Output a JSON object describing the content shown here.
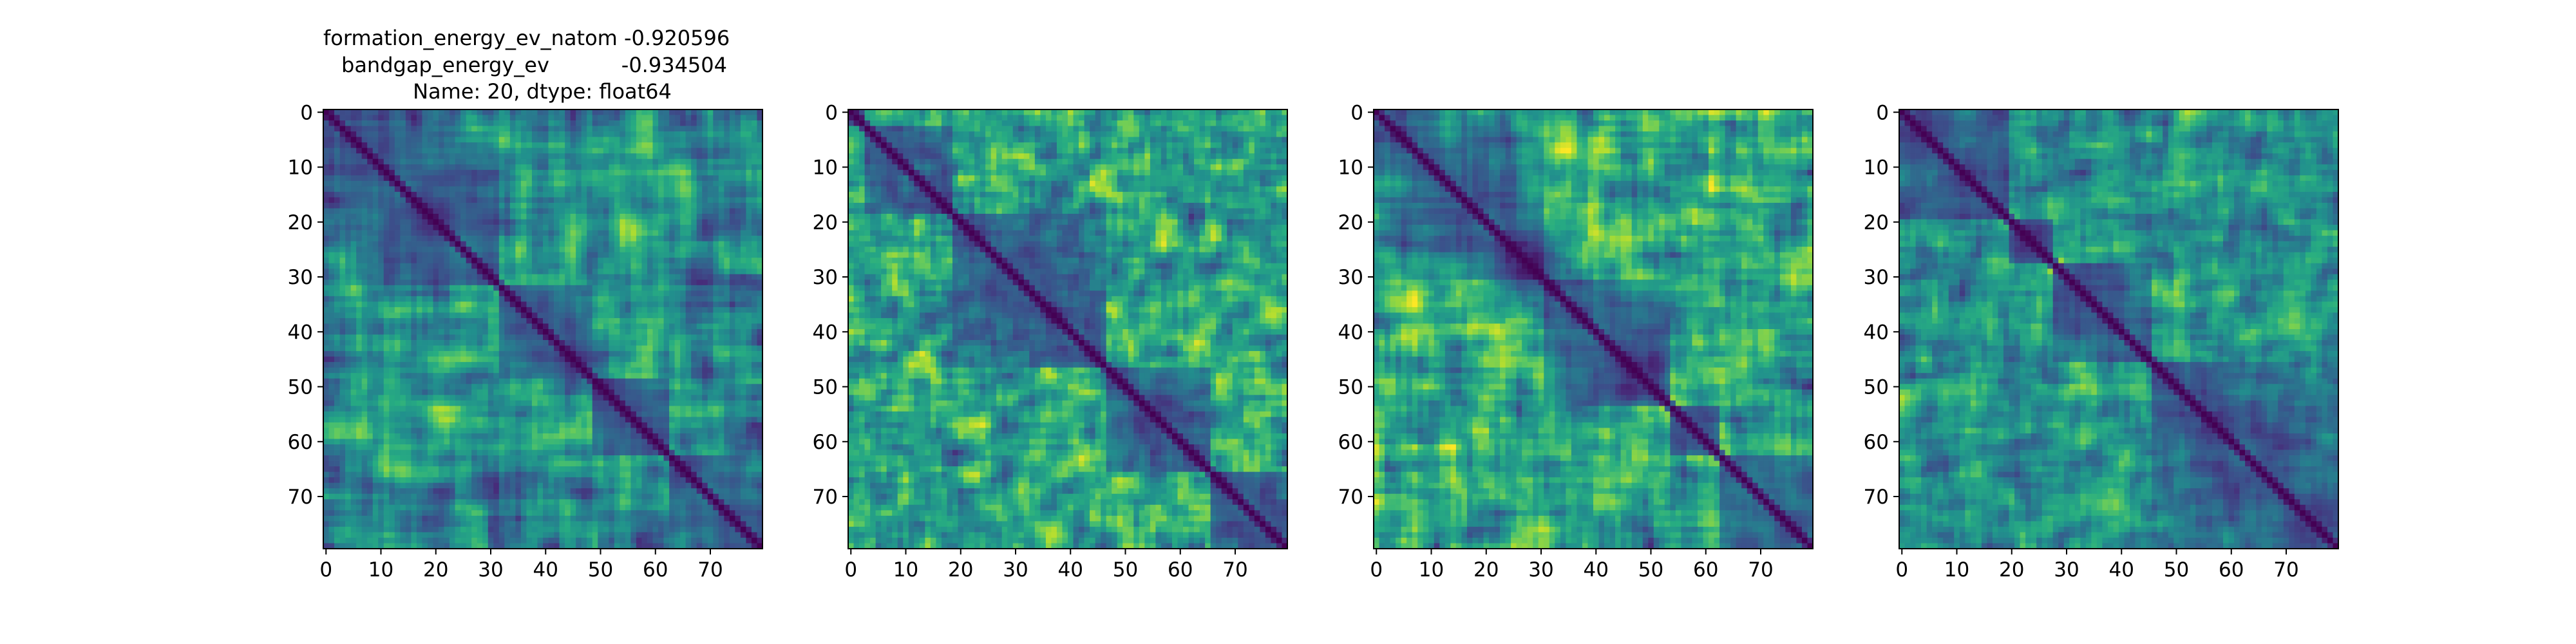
{
  "figure": {
    "title_lines": [
      "formation_energy_ev_natom   -0.920596",
      "bandgap_energy_ev           -0.934504",
      "Name: 20, dtype: float64"
    ]
  },
  "chart_data": [
    {
      "type": "heatmap",
      "panel": 1,
      "n": 80,
      "seed": 11,
      "band": 6,
      "blocks": [
        0,
        32,
        49,
        63,
        80
      ],
      "colormap": "viridis",
      "vmin": 0,
      "vmax": 1,
      "x_ticks": [
        0,
        10,
        20,
        30,
        40,
        50,
        60,
        70
      ],
      "y_ticks": [
        0,
        10,
        20,
        30,
        40,
        50,
        60,
        70
      ]
    },
    {
      "type": "heatmap",
      "panel": 2,
      "n": 80,
      "seed": 23,
      "band": 2,
      "blocks": [
        0,
        3,
        19,
        47,
        66,
        80
      ],
      "colormap": "viridis",
      "vmin": 0,
      "vmax": 1,
      "x_ticks": [
        0,
        10,
        20,
        30,
        40,
        50,
        60,
        70
      ],
      "y_ticks": [
        0,
        10,
        20,
        30,
        40,
        50,
        60,
        70
      ]
    },
    {
      "type": "heatmap",
      "panel": 3,
      "n": 80,
      "seed": 37,
      "band": 5,
      "blocks": [
        0,
        31,
        54,
        63,
        80
      ],
      "colormap": "viridis",
      "vmin": 0,
      "vmax": 1,
      "x_ticks": [
        0,
        10,
        20,
        30,
        40,
        50,
        60,
        70
      ],
      "y_ticks": [
        0,
        10,
        20,
        30,
        40,
        50,
        60,
        70
      ]
    },
    {
      "type": "heatmap",
      "panel": 4,
      "n": 80,
      "seed": 53,
      "band": 3,
      "blocks": [
        0,
        20,
        28,
        46,
        80
      ],
      "colormap": "viridis",
      "vmin": 0,
      "vmax": 1,
      "x_ticks": [
        0,
        10,
        20,
        30,
        40,
        50,
        60,
        70
      ],
      "y_ticks": [
        0,
        10,
        20,
        30,
        40,
        50,
        60,
        70
      ]
    }
  ]
}
